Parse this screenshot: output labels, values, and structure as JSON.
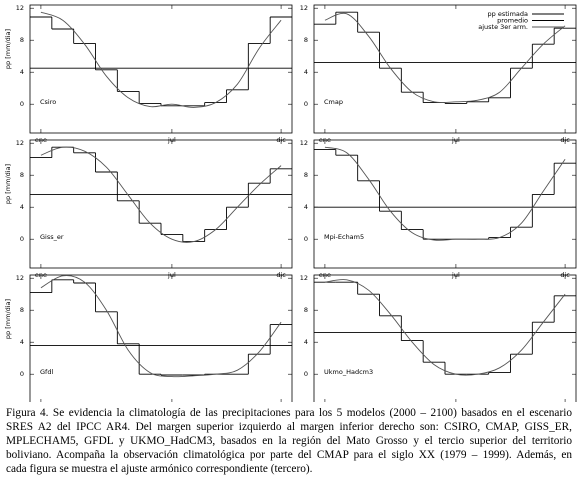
{
  "chart_data": [
    {
      "type": "line",
      "label": "Csiro",
      "ylabel": "pp [mm/dia]",
      "categories": [
        "ene",
        null,
        null,
        null,
        null,
        null,
        "jul",
        null,
        null,
        null,
        null,
        "dic"
      ],
      "ylim": [
        -3.6,
        12.4
      ],
      "yticks": [
        0,
        4,
        8,
        12
      ],
      "series": [
        {
          "color": "#000000",
          "style": "step",
          "values": [
            10.9,
            9.4,
            7.6,
            4.3,
            1.6,
            0.1,
            -0.2,
            -0.2,
            0.2,
            1.8,
            7.6,
            10.9
          ]
        },
        {
          "color": "#000000",
          "style": "mean",
          "values": [
            4.5,
            4.5,
            4.5,
            4.5,
            4.5,
            4.5,
            4.5,
            4.5,
            4.5,
            4.5,
            4.5,
            4.5
          ]
        },
        {
          "color": "#555555",
          "style": "smooth",
          "values": [
            11.5,
            10.5,
            7.5,
            3.5,
            0.8,
            -0.3,
            0,
            -0.4,
            0.2,
            2.5,
            7,
            10.5
          ]
        }
      ]
    },
    {
      "type": "line",
      "label": "Cmap",
      "categories": [
        "ene",
        null,
        null,
        null,
        null,
        null,
        "jul",
        null,
        null,
        null,
        null,
        "dic"
      ],
      "ylim": [
        -3.6,
        12.4
      ],
      "yticks": [
        0,
        4,
        8,
        12
      ],
      "series": [
        {
          "name": "pp estimada",
          "color": "#000000",
          "style": "step",
          "values": [
            10,
            11.5,
            9,
            4.5,
            1.5,
            0.2,
            0.1,
            0.3,
            0.8,
            4.5,
            7.5,
            9.5
          ]
        },
        {
          "name": "promedio",
          "color": "#000000",
          "style": "mean",
          "values": [
            5.2,
            5.2,
            5.2,
            5.2,
            5.2,
            5.2,
            5.2,
            5.2,
            5.2,
            5.2,
            5.2,
            5.2
          ]
        },
        {
          "name": "ajuste 3er arm.",
          "color": "#555555",
          "style": "smooth",
          "values": [
            10.5,
            11.3,
            8.5,
            4.5,
            1.5,
            0.3,
            0.3,
            0.5,
            1.5,
            4.5,
            7.5,
            9.8
          ]
        }
      ]
    },
    {
      "type": "line",
      "label": "Giss_er",
      "ylabel": "pp [mm/dia]",
      "categories": [
        "ene",
        null,
        null,
        null,
        null,
        null,
        "jul",
        null,
        null,
        null,
        null,
        "dic"
      ],
      "ylim": [
        -3.6,
        12.4
      ],
      "yticks": [
        0,
        4,
        8,
        12
      ],
      "series": [
        {
          "color": "#000000",
          "style": "step",
          "values": [
            10.2,
            11.5,
            10.8,
            8.4,
            4.8,
            2,
            0.6,
            -0.3,
            1.2,
            4,
            7,
            8.8
          ]
        },
        {
          "color": "#000000",
          "style": "mean",
          "values": [
            5.6,
            5.6,
            5.6,
            5.6,
            5.6,
            5.6,
            5.6,
            5.6,
            5.6,
            5.6,
            5.6,
            5.6
          ]
        },
        {
          "color": "#555555",
          "style": "smooth",
          "values": [
            10.5,
            11.5,
            11,
            9,
            5.5,
            2,
            0,
            -0.3,
            1.2,
            4,
            6.8,
            9.2
          ]
        }
      ]
    },
    {
      "type": "line",
      "label": "Mpi-Echam5",
      "categories": [
        "ene",
        null,
        null,
        null,
        null,
        null,
        "jul",
        null,
        null,
        null,
        null,
        "dic"
      ],
      "ylim": [
        -3.6,
        12.4
      ],
      "yticks": [
        0,
        4,
        8,
        12
      ],
      "series": [
        {
          "color": "#000000",
          "style": "step",
          "values": [
            11.2,
            10.5,
            7.3,
            3.5,
            1.2,
            0,
            0,
            0,
            0.2,
            1.5,
            5.6,
            9.5
          ]
        },
        {
          "color": "#000000",
          "style": "mean",
          "values": [
            4,
            4,
            4,
            4,
            4,
            4,
            4,
            4,
            4,
            4,
            4,
            4
          ]
        },
        {
          "color": "#555555",
          "style": "smooth",
          "values": [
            11.5,
            10.8,
            7.5,
            3.5,
            0.8,
            -0.1,
            0,
            0,
            0.2,
            2,
            6,
            10
          ]
        }
      ]
    },
    {
      "type": "line",
      "label": "Gfdl",
      "ylabel": "pp [mm/dia]",
      "categories": [
        "ene",
        null,
        null,
        null,
        null,
        null,
        "jul",
        null,
        null,
        null,
        null,
        "dic"
      ],
      "ylim": [
        -3.6,
        12.4
      ],
      "yticks": [
        0,
        4,
        8,
        12
      ],
      "series": [
        {
          "color": "#000000",
          "style": "step",
          "values": [
            10.2,
            11.8,
            11.4,
            7.8,
            3.8,
            0,
            -0.1,
            -0.1,
            0,
            0,
            2.5,
            6.2
          ]
        },
        {
          "color": "#000000",
          "style": "mean",
          "values": [
            3.6,
            3.6,
            3.6,
            3.6,
            3.6,
            3.6,
            3.6,
            3.6,
            3.6,
            3.6,
            3.6,
            3.6
          ]
        },
        {
          "color": "#555555",
          "style": "smooth",
          "values": [
            10.8,
            12.3,
            11.5,
            8,
            3,
            0.2,
            -0.3,
            -0.2,
            0,
            0.5,
            2.8,
            6.5
          ]
        }
      ]
    },
    {
      "type": "line",
      "label": "Ukmo_Hadcm3",
      "categories": [
        "ene",
        null,
        null,
        null,
        null,
        null,
        "jul",
        null,
        null,
        null,
        null,
        "dic"
      ],
      "ylim": [
        -3.6,
        12.4
      ],
      "yticks": [
        0,
        4,
        8,
        12
      ],
      "series": [
        {
          "color": "#000000",
          "style": "step",
          "values": [
            11.5,
            11.5,
            10,
            7.3,
            4.2,
            1.5,
            0,
            0,
            0.2,
            2.5,
            6.5,
            9.8
          ]
        },
        {
          "color": "#000000",
          "style": "mean",
          "values": [
            5.2,
            5.2,
            5.2,
            5.2,
            5.2,
            5.2,
            5.2,
            5.2,
            5.2,
            5.2,
            5.2,
            5.2
          ]
        },
        {
          "color": "#555555",
          "style": "smooth",
          "values": [
            11.5,
            11.8,
            10.5,
            7.5,
            4,
            1.2,
            0,
            0,
            0.8,
            3,
            6.5,
            10
          ]
        }
      ]
    }
  ],
  "caption": [
    "Figura 4. Se evidencia la climatología de las precipitaciones para los 5 modelos (2000 – 2100) basados en el escenario",
    "SRES A2 del IPCC AR4. Del margen superior izquierdo al margen inferior derecho son: CSIRO, CMAP, GISS_ER,",
    "MPLECHAM5, GFDL y UKMO_HadCM3, basados en la región del Mato Grosso y el tercio superior del territorio",
    "boliviano. Acompaña la observación climatológica por parte del CMAP para el siglo XX (1979 – 1999). Además, en",
    "cada figura se muestra el ajuste armónico correspondiente (tercero)."
  ]
}
